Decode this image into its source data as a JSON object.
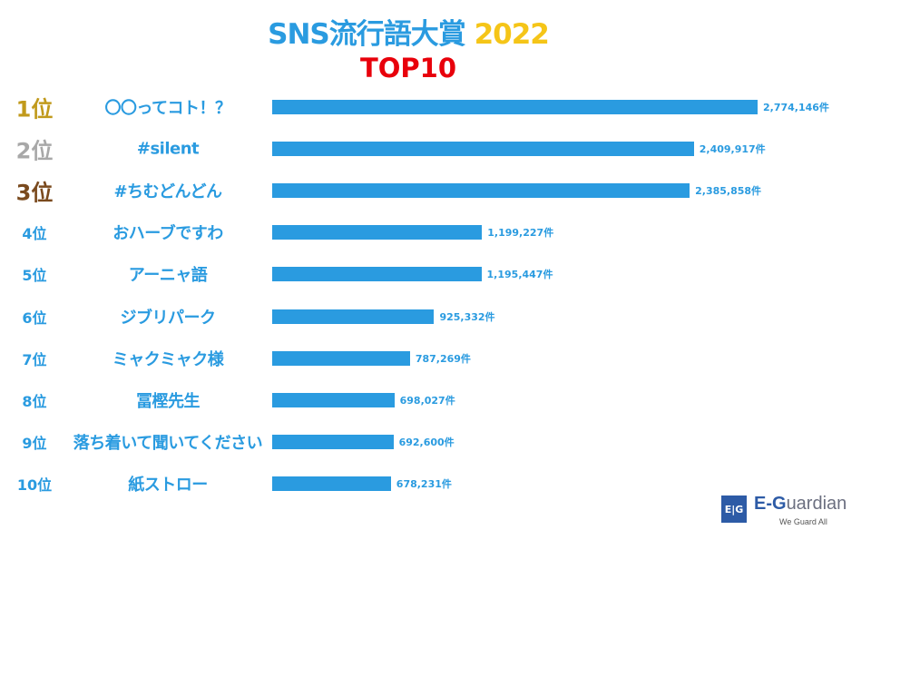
{
  "chart_data": {
    "type": "bar",
    "orientation": "horizontal",
    "title": "SNS流行語大賞",
    "title_year": "2022",
    "subtitle": "TOP10",
    "unit": "件",
    "ranks": [
      "1位",
      "2位",
      "3位",
      "4位",
      "5位",
      "6位",
      "7位",
      "8位",
      "9位",
      "10位"
    ],
    "categories": [
      "〇〇ってコト！？",
      "#silent",
      "#ちむどんどん",
      "おハーブですわ",
      "アーニャ語",
      "ジブリパーク",
      "ミャクミャク様",
      "冨樫先生",
      "落ち着いて聞いてください",
      "紙ストロー"
    ],
    "values": [
      2774146,
      2409917,
      2385858,
      1199227,
      1195447,
      925332,
      787269,
      698027,
      692600,
      678231
    ],
    "value_labels": [
      "2,774,146件",
      "2,409,917件",
      "2,385,858件",
      "1,199,227件",
      "1,195,447件",
      "925,332件",
      "787,269件",
      "698,027件",
      "692,600件",
      "678,231件"
    ],
    "rank_colors": [
      "#c19a1c",
      "#a8a8a8",
      "#7a4a1e",
      "#2a9be0",
      "#2a9be0",
      "#2a9be0",
      "#2a9be0",
      "#2a9be0",
      "#2a9be0",
      "#2a9be0"
    ],
    "bar_color": "#2a9be0",
    "xlim": [
      0,
      2774146
    ]
  },
  "logo": {
    "mark": "EG",
    "name_prefix": "E-G",
    "name_rest": "uardian",
    "tagline": "We Guard All"
  }
}
